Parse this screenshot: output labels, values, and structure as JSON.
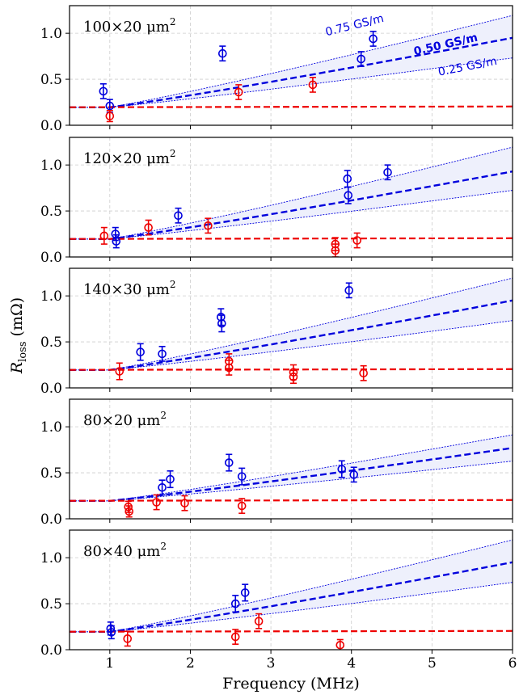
{
  "chart_data": {
    "type": "scatter",
    "layout": "5 stacked panels sharing x-axis",
    "xlabel": "Frequency (MHz)",
    "ylabel": "R_loss (mΩ)",
    "ylabel_main": "R",
    "ylabel_sub": "loss",
    "ylabel_unit": " (mΩ)",
    "xlim": [
      0.5,
      6.0
    ],
    "ylim": [
      0.0,
      1.3
    ],
    "xticks": [
      1,
      2,
      3,
      4,
      5,
      6
    ],
    "yticks": [
      0.0,
      0.5,
      1.0
    ],
    "grid": true,
    "colors": {
      "blue": "#0000dd",
      "red": "#ee0000",
      "band": "#eef0fc"
    },
    "annotations": [
      {
        "text": "0.75 GS/m",
        "panel": 0,
        "x": 4.05,
        "y": 1.05,
        "angle": -14,
        "bold": false
      },
      {
        "text": "0.50 GS/m",
        "panel": 0,
        "x": 5.18,
        "y": 0.84,
        "angle": -13,
        "bold": true
      },
      {
        "text": "0.25 GS/m",
        "panel": 0,
        "x": 5.45,
        "y": 0.6,
        "angle": -11,
        "bold": false
      }
    ],
    "panels": [
      {
        "label": "100×20 μm",
        "label_sup": "2",
        "slope50": 0.18,
        "slope75": 0.238,
        "slope25": 0.128,
        "blue_points": [
          {
            "x": 0.92,
            "y": 0.37,
            "err": 0.08
          },
          {
            "x": 1.0,
            "y": 0.21,
            "err": 0.07
          },
          {
            "x": 2.4,
            "y": 0.78,
            "err": 0.08
          },
          {
            "x": 4.12,
            "y": 0.72,
            "err": 0.08
          },
          {
            "x": 4.27,
            "y": 0.94,
            "err": 0.08
          }
        ],
        "red_points": [
          {
            "x": 1.0,
            "y": 0.1,
            "err": 0.06
          },
          {
            "x": 2.6,
            "y": 0.36,
            "err": 0.08
          },
          {
            "x": 3.52,
            "y": 0.44,
            "err": 0.08
          }
        ]
      },
      {
        "label": "120×20 μm",
        "label_sup": "2",
        "slope50": 0.175,
        "slope75": 0.238,
        "slope25": 0.126,
        "blue_points": [
          {
            "x": 1.07,
            "y": 0.25,
            "err": 0.07
          },
          {
            "x": 1.08,
            "y": 0.17,
            "err": 0.07
          },
          {
            "x": 1.85,
            "y": 0.45,
            "err": 0.08
          },
          {
            "x": 3.95,
            "y": 0.85,
            "err": 0.09
          },
          {
            "x": 3.96,
            "y": 0.67,
            "err": 0.09
          },
          {
            "x": 4.45,
            "y": 0.92,
            "err": 0.08
          }
        ],
        "red_points": [
          {
            "x": 0.93,
            "y": 0.23,
            "err": 0.09
          },
          {
            "x": 1.48,
            "y": 0.32,
            "err": 0.08
          },
          {
            "x": 2.22,
            "y": 0.34,
            "err": 0.08
          },
          {
            "x": 3.8,
            "y": 0.14,
            "err": 0.07
          },
          {
            "x": 3.8,
            "y": 0.07,
            "err": 0.07
          },
          {
            "x": 4.07,
            "y": 0.18,
            "err": 0.08
          }
        ]
      },
      {
        "label": "140×30 μm",
        "label_sup": "2",
        "slope50": 0.18,
        "slope75": 0.238,
        "slope25": 0.128,
        "blue_points": [
          {
            "x": 1.38,
            "y": 0.39,
            "err": 0.09
          },
          {
            "x": 1.65,
            "y": 0.37,
            "err": 0.08
          },
          {
            "x": 2.38,
            "y": 0.77,
            "err": 0.09
          },
          {
            "x": 2.39,
            "y": 0.7,
            "err": 0.09
          },
          {
            "x": 3.97,
            "y": 1.06,
            "err": 0.08
          }
        ],
        "red_points": [
          {
            "x": 1.12,
            "y": 0.18,
            "err": 0.09
          },
          {
            "x": 2.48,
            "y": 0.29,
            "err": 0.08
          },
          {
            "x": 2.48,
            "y": 0.22,
            "err": 0.08
          },
          {
            "x": 3.28,
            "y": 0.17,
            "err": 0.08
          },
          {
            "x": 3.28,
            "y": 0.12,
            "err": 0.07
          },
          {
            "x": 4.15,
            "y": 0.16,
            "err": 0.08
          }
        ]
      },
      {
        "label": "80×20 μm",
        "label_sup": "2",
        "slope50": 0.137,
        "slope75": 0.171,
        "slope25": 0.103,
        "blue_points": [
          {
            "x": 1.65,
            "y": 0.34,
            "err": 0.08
          },
          {
            "x": 1.75,
            "y": 0.43,
            "err": 0.09
          },
          {
            "x": 2.48,
            "y": 0.61,
            "err": 0.09
          },
          {
            "x": 2.64,
            "y": 0.46,
            "err": 0.09
          },
          {
            "x": 3.88,
            "y": 0.54,
            "err": 0.09
          },
          {
            "x": 4.03,
            "y": 0.48,
            "err": 0.08
          }
        ],
        "red_points": [
          {
            "x": 1.23,
            "y": 0.13,
            "err": 0.06
          },
          {
            "x": 1.24,
            "y": 0.08,
            "err": 0.06
          },
          {
            "x": 1.58,
            "y": 0.18,
            "err": 0.08
          },
          {
            "x": 1.93,
            "y": 0.17,
            "err": 0.08
          },
          {
            "x": 2.64,
            "y": 0.14,
            "err": 0.08
          }
        ]
      },
      {
        "label": "80×40 μm",
        "label_sup": "2",
        "slope50": 0.18,
        "slope75": 0.238,
        "slope25": 0.128,
        "blue_points": [
          {
            "x": 1.01,
            "y": 0.23,
            "err": 0.07
          },
          {
            "x": 1.02,
            "y": 0.19,
            "err": 0.07
          },
          {
            "x": 2.56,
            "y": 0.5,
            "err": 0.09
          },
          {
            "x": 2.68,
            "y": 0.62,
            "err": 0.09
          }
        ],
        "red_points": [
          {
            "x": 1.22,
            "y": 0.12,
            "err": 0.08
          },
          {
            "x": 2.56,
            "y": 0.14,
            "err": 0.08
          },
          {
            "x": 2.85,
            "y": 0.31,
            "err": 0.08
          },
          {
            "x": 3.86,
            "y": 0.05,
            "err": 0.06
          }
        ]
      }
    ]
  }
}
